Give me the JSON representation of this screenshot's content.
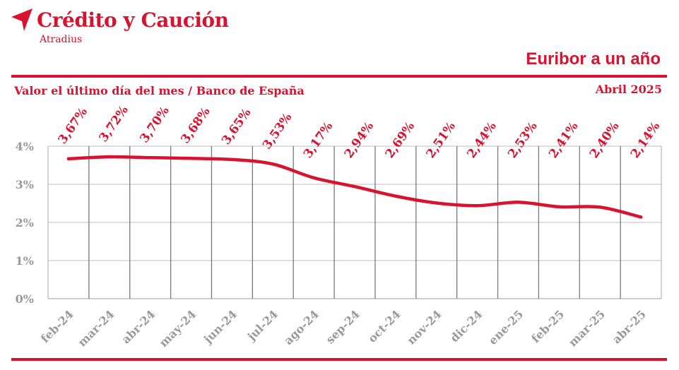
{
  "header": {
    "brand": "Crédito y Caución",
    "brand_sub": "Atradius",
    "title": "Euribor a un año",
    "subtitle": "Valor el último día del mes / Banco de España",
    "date": "Abril 2025"
  },
  "colors": {
    "accent": "#d7132f",
    "grid": "#bdbdbd",
    "axis_text": "#9a9a9a"
  },
  "chart_data": {
    "type": "line",
    "categories": [
      "feb-24",
      "mar-24",
      "abr-24",
      "may-24",
      "jun-24",
      "jul-24",
      "ago-24",
      "sep-24",
      "oct-24",
      "nov-24",
      "dic-24",
      "ene-25",
      "feb-25",
      "mar-25",
      "abr-25"
    ],
    "values": [
      3.67,
      3.72,
      3.7,
      3.68,
      3.65,
      3.53,
      3.17,
      2.94,
      2.69,
      2.51,
      2.44,
      2.53,
      2.41,
      2.4,
      2.14
    ],
    "data_labels": [
      "3,67%",
      "3,72%",
      "3,70%",
      "3,68%",
      "3,65%",
      "3,53%",
      "3,17%",
      "2,94%",
      "2,69%",
      "2,51%",
      "2,44%",
      "2,53%",
      "2,41%",
      "2,40%",
      "2,14%"
    ],
    "y_ticks": [
      "0%",
      "1%",
      "2%",
      "3%",
      "4%"
    ],
    "ylim": [
      0,
      4
    ],
    "grid": true,
    "legend": "none"
  }
}
